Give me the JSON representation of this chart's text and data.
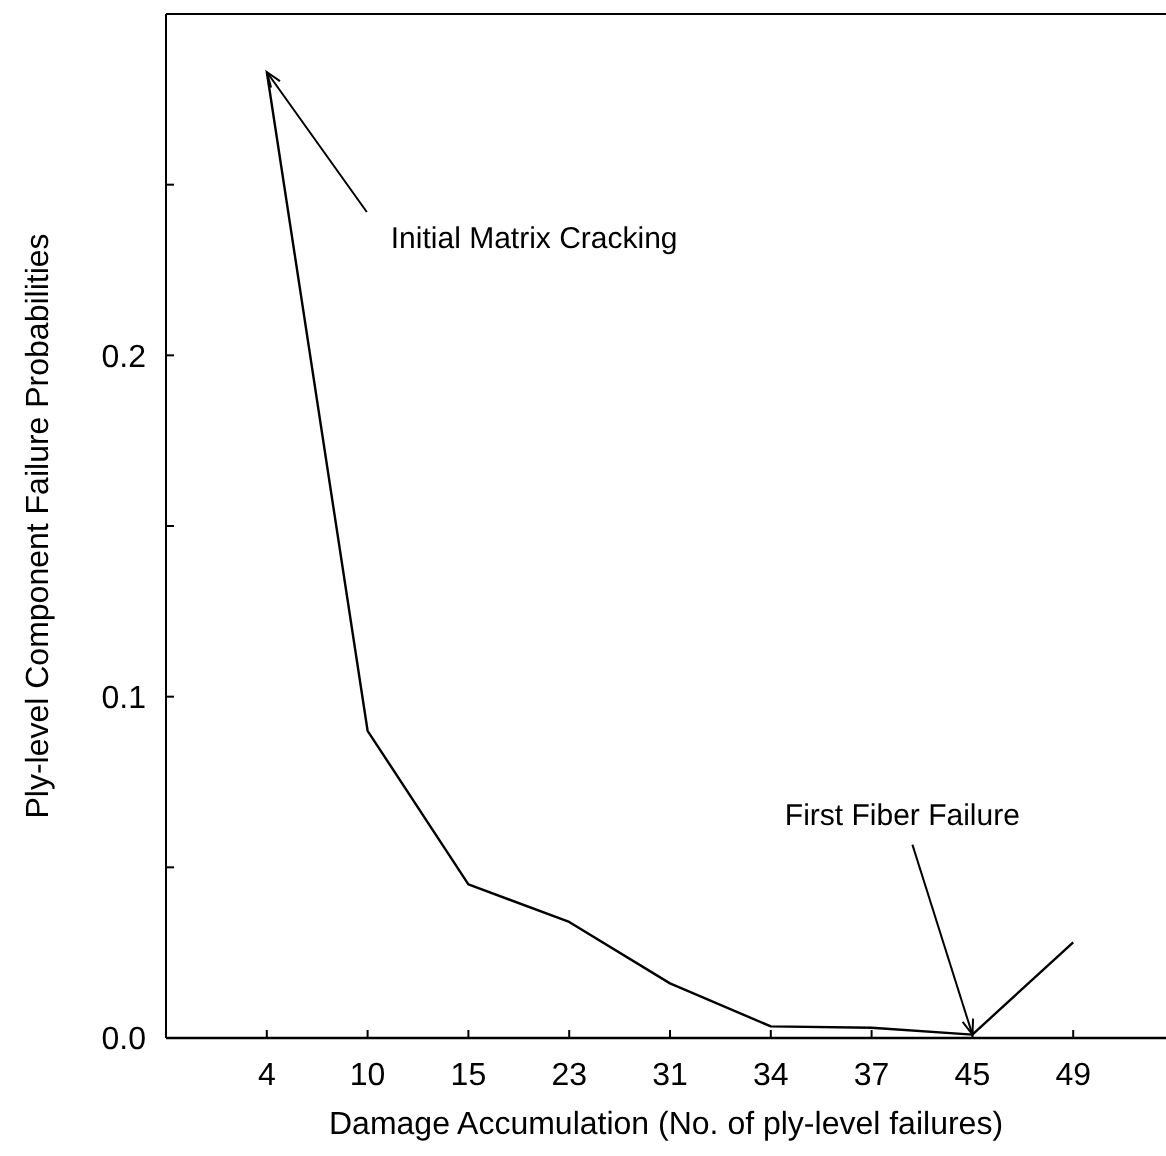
{
  "chart_data": {
    "type": "line",
    "xlabel": "Damage Accumulation (No. of ply-level failures)",
    "ylabel": "Ply-level Component Failure Probabilities",
    "categories": [
      "4",
      "10",
      "15",
      "23",
      "31",
      "34",
      "37",
      "45",
      "49"
    ],
    "series": [
      {
        "color": "#000000",
        "values": [
          0.283,
          0.09,
          0.045,
          0.034,
          0.016,
          0.0034,
          0.003,
          0.001,
          0.028
        ]
      }
    ],
    "ylim": [
      0,
      0.3
    ],
    "yticks": [
      {
        "value": 0,
        "label": "0.0"
      },
      {
        "value": 0.05,
        "label": null
      },
      {
        "value": 0.1,
        "label": "0.1"
      },
      {
        "value": 0.15,
        "label": null
      },
      {
        "value": 0.2,
        "label": "0.2"
      },
      {
        "value": 0.25,
        "label": null
      }
    ],
    "annotations": [
      {
        "text": "Initial Matrix Cracking",
        "x": "4",
        "y": 0.283
      },
      {
        "text": "First Fiber Failure",
        "x": "45",
        "y": 0.001
      }
    ],
    "grid": false,
    "marker": "none",
    "line_style": "solid"
  }
}
